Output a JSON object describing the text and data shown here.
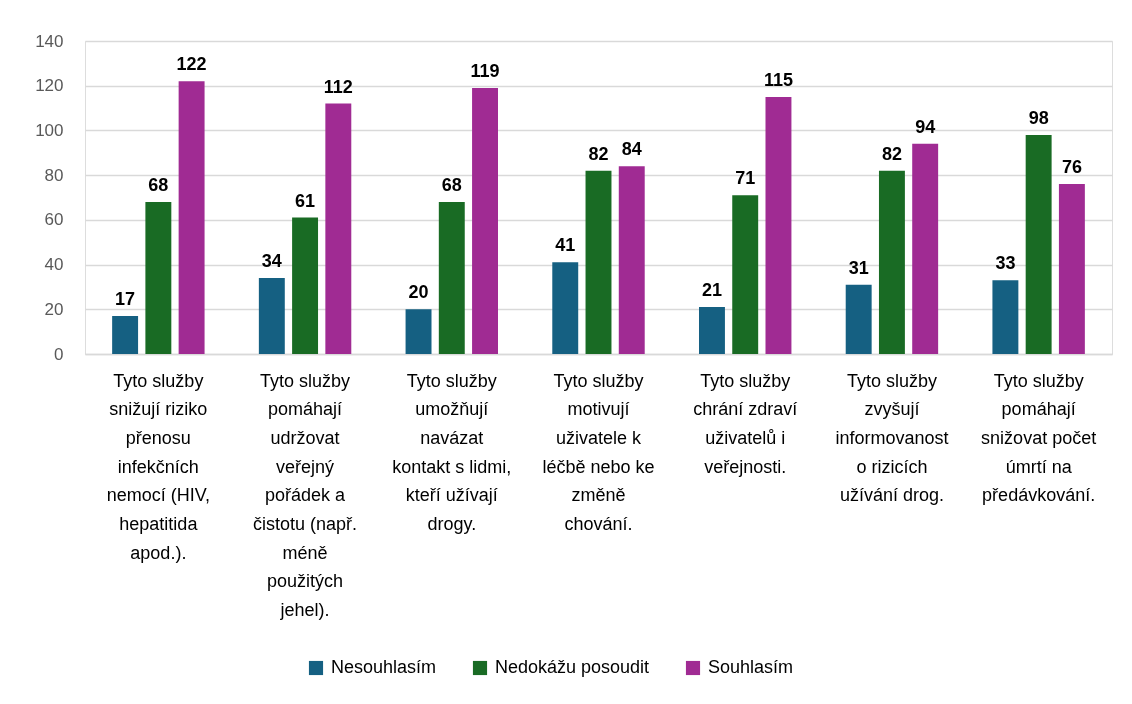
{
  "chart_data": {
    "type": "bar",
    "categories": [
      "Tyto služby\nsnižují riziko\npřenosu\ninfekčních\nnemocí (HIV,\nhepatitida\napod.).",
      "Tyto služby\npomáhají\nudržovat\nveřejný\npořádek a\nčistotu (např.\nméně\npoužitých\njehel).",
      "Tyto služby\numožňují\nnavázat\nkontakt s lidmi,\nkteří užívají\ndrogy.",
      "Tyto služby\nmotivují\nuživatele k\nléčbě nebo ke\nzměně\nchování.",
      "Tyto služby\nchrání zdraví\nuživatelů i\nveřejnosti.",
      "Tyto služby\nzvyšují\ninformovanost\no rizicích\nužívání drog.",
      "Tyto služby\npomáhají\nsnižovat počet\númrtí na\npředávkování."
    ],
    "series": [
      {
        "name": "Nesouhlasím",
        "color": "#156082",
        "values": [
          17,
          34,
          20,
          41,
          21,
          31,
          33
        ]
      },
      {
        "name": "Nedokážu posoudit",
        "color": "#196b24",
        "values": [
          68,
          61,
          68,
          82,
          71,
          82,
          98
        ]
      },
      {
        "name": "Souhlasím",
        "color": "#a02b93",
        "values": [
          122,
          112,
          119,
          84,
          115,
          94,
          76
        ]
      }
    ],
    "ylim": [
      0,
      140
    ],
    "yticks": [
      0,
      20,
      40,
      60,
      80,
      100,
      120,
      140
    ],
    "grid": "y",
    "legend": "bottom",
    "data_labels": true
  }
}
